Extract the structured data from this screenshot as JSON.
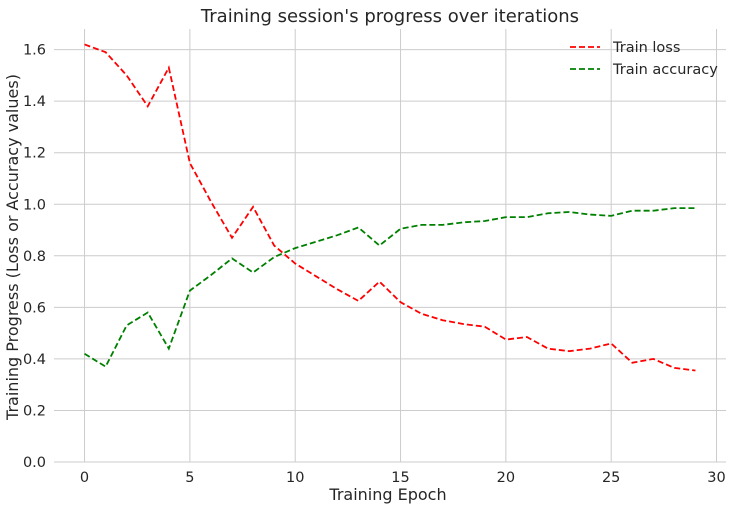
{
  "chart_data": {
    "type": "line",
    "title": "Training session's progress over iterations",
    "xlabel": "Training Epoch",
    "ylabel": "Training Progress (Loss or Accuracy values)",
    "xlim": [
      -1.45,
      30.45
    ],
    "ylim": [
      0.0,
      1.68
    ],
    "xticks": [
      0,
      5,
      10,
      15,
      20,
      25,
      30
    ],
    "yticks": [
      0.0,
      0.2,
      0.4,
      0.6,
      0.8,
      1.0,
      1.2,
      1.4,
      1.6
    ],
    "grid": true,
    "legend_position": "top-right",
    "x": [
      0,
      1,
      2,
      3,
      4,
      5,
      6,
      7,
      8,
      9,
      10,
      11,
      12,
      13,
      14,
      15,
      16,
      17,
      18,
      19,
      20,
      21,
      22,
      23,
      24,
      25,
      26,
      27,
      28,
      29
    ],
    "series": [
      {
        "name": "Train loss",
        "color": "#ff0000",
        "style": "dashed",
        "values": [
          1.62,
          1.59,
          1.5,
          1.38,
          1.53,
          1.16,
          1.01,
          0.87,
          0.99,
          0.84,
          0.77,
          0.72,
          0.67,
          0.625,
          0.7,
          0.62,
          0.575,
          0.55,
          0.535,
          0.525,
          0.475,
          0.485,
          0.44,
          0.43,
          0.44,
          0.46,
          0.385,
          0.4,
          0.365,
          0.355
        ]
      },
      {
        "name": "Train accuracy",
        "color": "#008000",
        "style": "dashed",
        "values": [
          0.42,
          0.37,
          0.53,
          0.58,
          0.44,
          0.665,
          0.725,
          0.79,
          0.735,
          0.795,
          0.83,
          0.855,
          0.88,
          0.91,
          0.84,
          0.905,
          0.92,
          0.92,
          0.93,
          0.935,
          0.95,
          0.95,
          0.965,
          0.97,
          0.96,
          0.955,
          0.975,
          0.975,
          0.985,
          0.985
        ]
      }
    ]
  }
}
